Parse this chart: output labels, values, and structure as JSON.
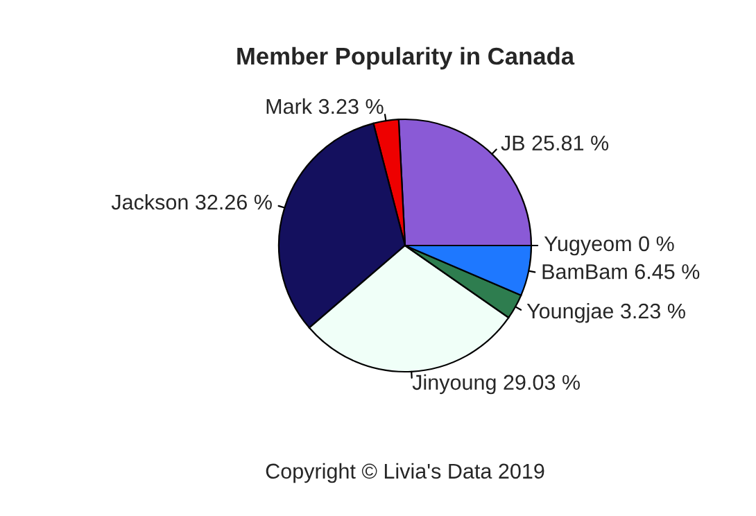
{
  "chart_data": {
    "type": "pie",
    "title": "Member Popularity in Canada",
    "categories": [
      "JB",
      "Mark",
      "Jackson",
      "Jinyoung",
      "Youngjae",
      "BamBam",
      "Yugyeom"
    ],
    "values": [
      25.81,
      3.23,
      32.26,
      29.03,
      3.23,
      6.45,
      0
    ],
    "value_labels": [
      "25.81 %",
      "3.23 %",
      "32.26 %",
      "29.03 %",
      "3.23 %",
      "6.45 %",
      "0 %"
    ],
    "colors": [
      "#8a5ad6",
      "#ee0000",
      "#14105e",
      "#f0fff8",
      "#2e7d4f",
      "#1e78ff",
      "#ffffff"
    ],
    "annotations": [
      "Copyright © Livia's Data 2019"
    ]
  }
}
